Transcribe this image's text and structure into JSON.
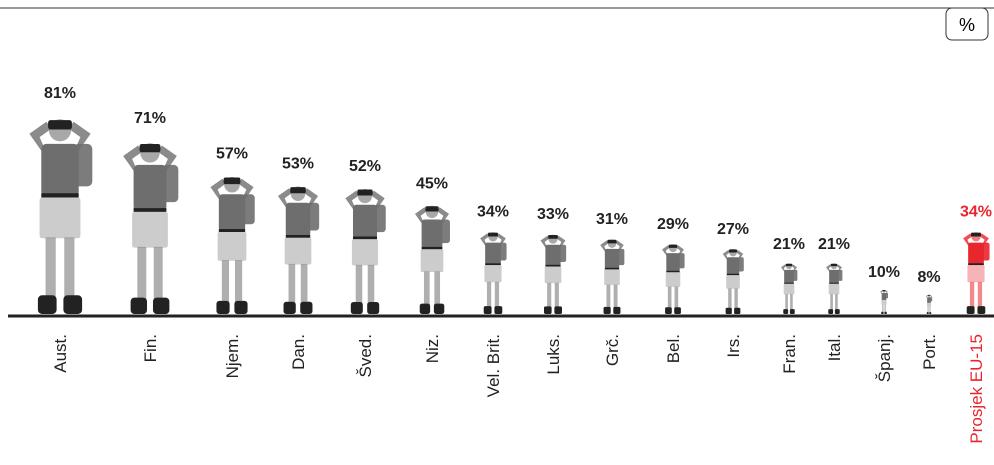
{
  "chart_data": {
    "type": "pictogram",
    "unit": "%",
    "categories": [
      "Aust.",
      "Fin.",
      "Njem.",
      "Dan.",
      "Šved.",
      "Niz.",
      "Vel. Brit.",
      "Luks.",
      "Grč.",
      "Bel.",
      "Irs.",
      "Fran.",
      "Ital.",
      "Španj.",
      "Port.",
      "Prosjek EU-15"
    ],
    "values": [
      81,
      71,
      57,
      53,
      52,
      45,
      34,
      33,
      31,
      29,
      27,
      21,
      21,
      10,
      8,
      34
    ],
    "value_labels": [
      "81%",
      "71%",
      "57%",
      "53%",
      "52%",
      "45%",
      "34%",
      "33%",
      "31%",
      "29%",
      "27%",
      "21%",
      "21%",
      "10%",
      "8%",
      "34%"
    ],
    "colors": [
      "#6e6e6e",
      "#6e6e6e",
      "#6e6e6e",
      "#6e6e6e",
      "#6e6e6e",
      "#6e6e6e",
      "#6e6e6e",
      "#6e6e6e",
      "#6e6e6e",
      "#6e6e6e",
      "#6e6e6e",
      "#6e6e6e",
      "#6e6e6e",
      "#6e6e6e",
      "#6e6e6e",
      "#e8262e"
    ]
  }
}
